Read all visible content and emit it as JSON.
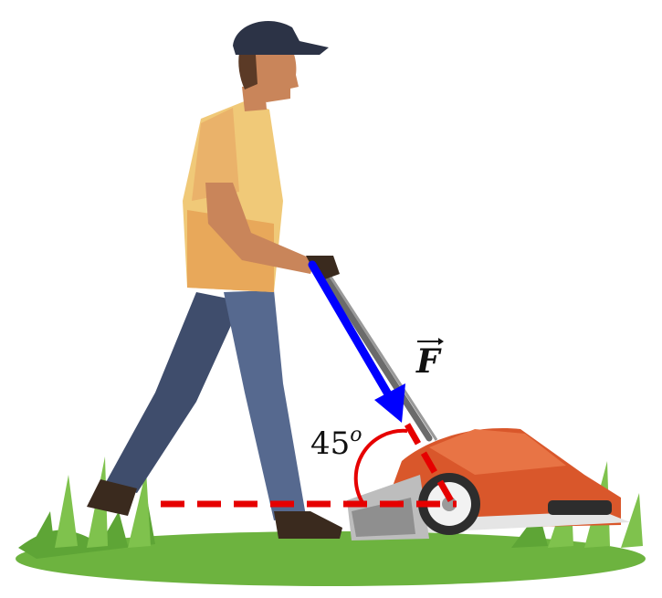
{
  "diagram": {
    "force_label": "F",
    "angle_value": "45",
    "angle_unit": "o"
  },
  "colors": {
    "force_arrow": "#0000ff",
    "reference_lines": "#e60000",
    "angle_arc": "#e60000",
    "grass": "#6db33f",
    "mower_body": "#d9572b",
    "shirt": "#f0c978",
    "jeans": "#4a5a7a",
    "cap": "#2c3346",
    "skin": "#c9855a"
  }
}
